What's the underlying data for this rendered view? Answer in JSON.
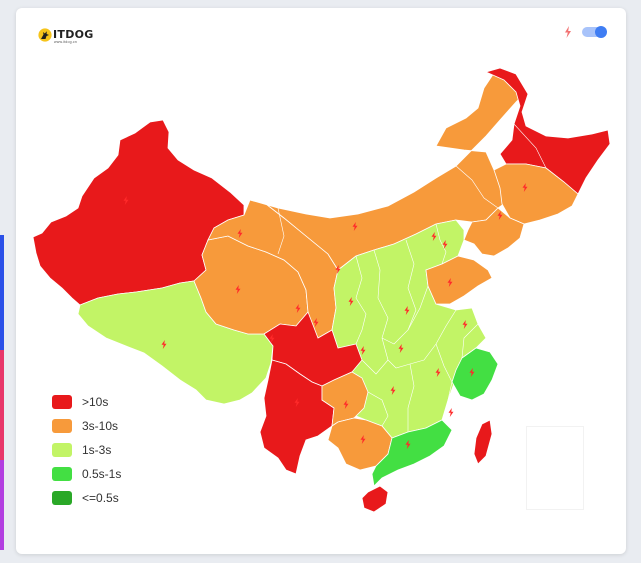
{
  "logo": {
    "text": "ITDOG",
    "subtext": "www.itdog.cn"
  },
  "controls": {
    "toggle_on": true,
    "bolt_icon": "lightning-icon"
  },
  "legend": [
    {
      "label": ">10s",
      "color": "#e8191b"
    },
    {
      "label": "3s-10s",
      "color": "#f79a3b"
    },
    {
      "label": "1s-3s",
      "color": "#c2f466"
    },
    {
      "label": "0.5s-1s",
      "color": "#43df43"
    },
    {
      "label": "<=0.5s",
      "color": "#2aa827"
    }
  ],
  "regions": [
    {
      "name": "xinjiang",
      "category": ">10s"
    },
    {
      "name": "tibet",
      "category": "1s-3s"
    },
    {
      "name": "qinghai",
      "category": "3s-10s"
    },
    {
      "name": "gansu",
      "category": "3s-10s"
    },
    {
      "name": "inner-mongolia",
      "category": "3s-10s"
    },
    {
      "name": "heilongjiang",
      "category": ">10s"
    },
    {
      "name": "jilin",
      "category": "3s-10s"
    },
    {
      "name": "liaoning",
      "category": "3s-10s"
    },
    {
      "name": "sichuan",
      "category": ">10s"
    },
    {
      "name": "yunnan",
      "category": ">10s"
    },
    {
      "name": "guangxi",
      "category": "3s-10s"
    },
    {
      "name": "guizhou",
      "category": "3s-10s"
    },
    {
      "name": "guangdong",
      "category": "0.5s-1s"
    },
    {
      "name": "fujian",
      "category": "0.5s-1s"
    },
    {
      "name": "shandong",
      "category": "3s-10s"
    },
    {
      "name": "hainan",
      "category": ">10s"
    },
    {
      "name": "taiwan",
      "category": ">10s"
    },
    {
      "name": "central-east",
      "category": "1s-3s"
    }
  ]
}
